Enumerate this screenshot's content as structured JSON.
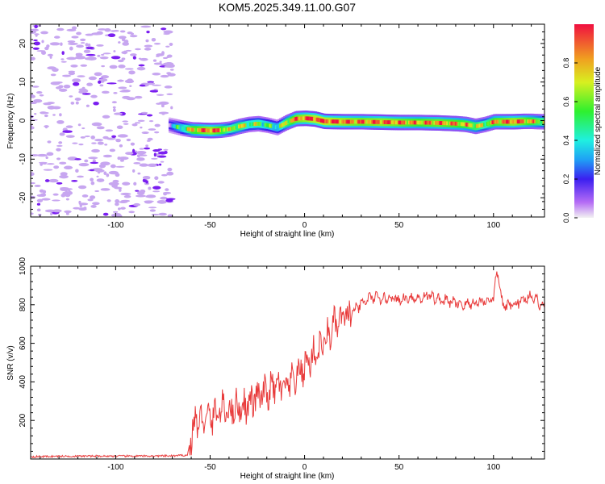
{
  "title": "KOM5.2025.349.11.00.G07",
  "colors": {
    "snr_line": "#e83a3a",
    "noise_light": "#c7a6f0",
    "noise_dark": "#7a1ef0"
  },
  "chart_data": [
    {
      "type": "heatmap",
      "name": "spectrogram",
      "xlabel": "Height of straight line (km)",
      "ylabel": "Frequency (Hz)",
      "xlim": [
        -145,
        127
      ],
      "ylim": [
        -25,
        25
      ],
      "xticks": [
        -100,
        -50,
        0,
        50,
        100
      ],
      "yticks": [
        -20,
        -10,
        0,
        10,
        20
      ],
      "colorbar": {
        "label": "Normalized spectral amplitude",
        "range": [
          0,
          1
        ],
        "ticks": [
          "0.0",
          "0.2",
          "0.4",
          "0.6",
          "0.8"
        ]
      },
      "signal_track": {
        "x": [
          -72,
          -65,
          -60,
          -55,
          -50,
          -45,
          -40,
          -35,
          -30,
          -25,
          -20,
          -15,
          -10,
          -5,
          0,
          5,
          10,
          20,
          30,
          40,
          50,
          60,
          70,
          80,
          85,
          90,
          95,
          100,
          105,
          110,
          115,
          120,
          125
        ],
        "freq": [
          -1.2,
          -2.0,
          -2.4,
          -2.5,
          -2.6,
          -2.5,
          -2.2,
          -1.5,
          -1.0,
          -0.8,
          -1.2,
          -1.8,
          -0.5,
          0.5,
          0.6,
          0.4,
          -0.2,
          -0.3,
          -0.3,
          -0.4,
          -0.5,
          -0.5,
          -0.6,
          -0.8,
          -1.0,
          -1.5,
          -1.0,
          -0.3,
          -0.3,
          -0.3,
          -0.2,
          -0.2,
          -0.3
        ],
        "amplitude": [
          0.25,
          0.5,
          0.75,
          0.85,
          0.9,
          0.8,
          0.6,
          0.7,
          0.55,
          0.6,
          0.5,
          0.45,
          0.7,
          0.85,
          0.9,
          0.95,
          0.95,
          0.9,
          0.85,
          0.9,
          0.85,
          0.8,
          0.85,
          0.8,
          0.75,
          0.7,
          0.6,
          0.8,
          0.85,
          0.9,
          0.85,
          0.75,
          0.65
        ]
      },
      "noise_region": "scattered low-amplitude noise for heights below -70 km"
    },
    {
      "type": "line",
      "name": "snr",
      "xlabel": "Height of straight line (km)",
      "ylabel": "SNR (v/v)",
      "xlim": [
        -145,
        127
      ],
      "ylim": [
        0,
        1000
      ],
      "xticks": [
        -100,
        -50,
        0,
        50,
        100
      ],
      "yticks": [
        200,
        400,
        600,
        800,
        1000
      ],
      "series": [
        {
          "name": "SNR",
          "x": [
            -145,
            -130,
            -110,
            -90,
            -70,
            -62,
            -60,
            -58,
            -55,
            -50,
            -45,
            -40,
            -35,
            -30,
            -25,
            -20,
            -15,
            -10,
            -5,
            0,
            5,
            10,
            15,
            20,
            25,
            30,
            35,
            40,
            45,
            50,
            55,
            60,
            65,
            70,
            75,
            80,
            85,
            90,
            95,
            100,
            102,
            105,
            110,
            115,
            120,
            125
          ],
          "values": [
            12,
            14,
            15,
            15,
            16,
            20,
            120,
            190,
            200,
            210,
            250,
            260,
            270,
            280,
            320,
            340,
            380,
            360,
            420,
            480,
            540,
            600,
            680,
            720,
            760,
            800,
            840,
            830,
            840,
            820,
            840,
            830,
            850,
            830,
            820,
            810,
            800,
            810,
            820,
            830,
            980,
            790,
            800,
            820,
            850,
            800
          ]
        }
      ]
    }
  ]
}
